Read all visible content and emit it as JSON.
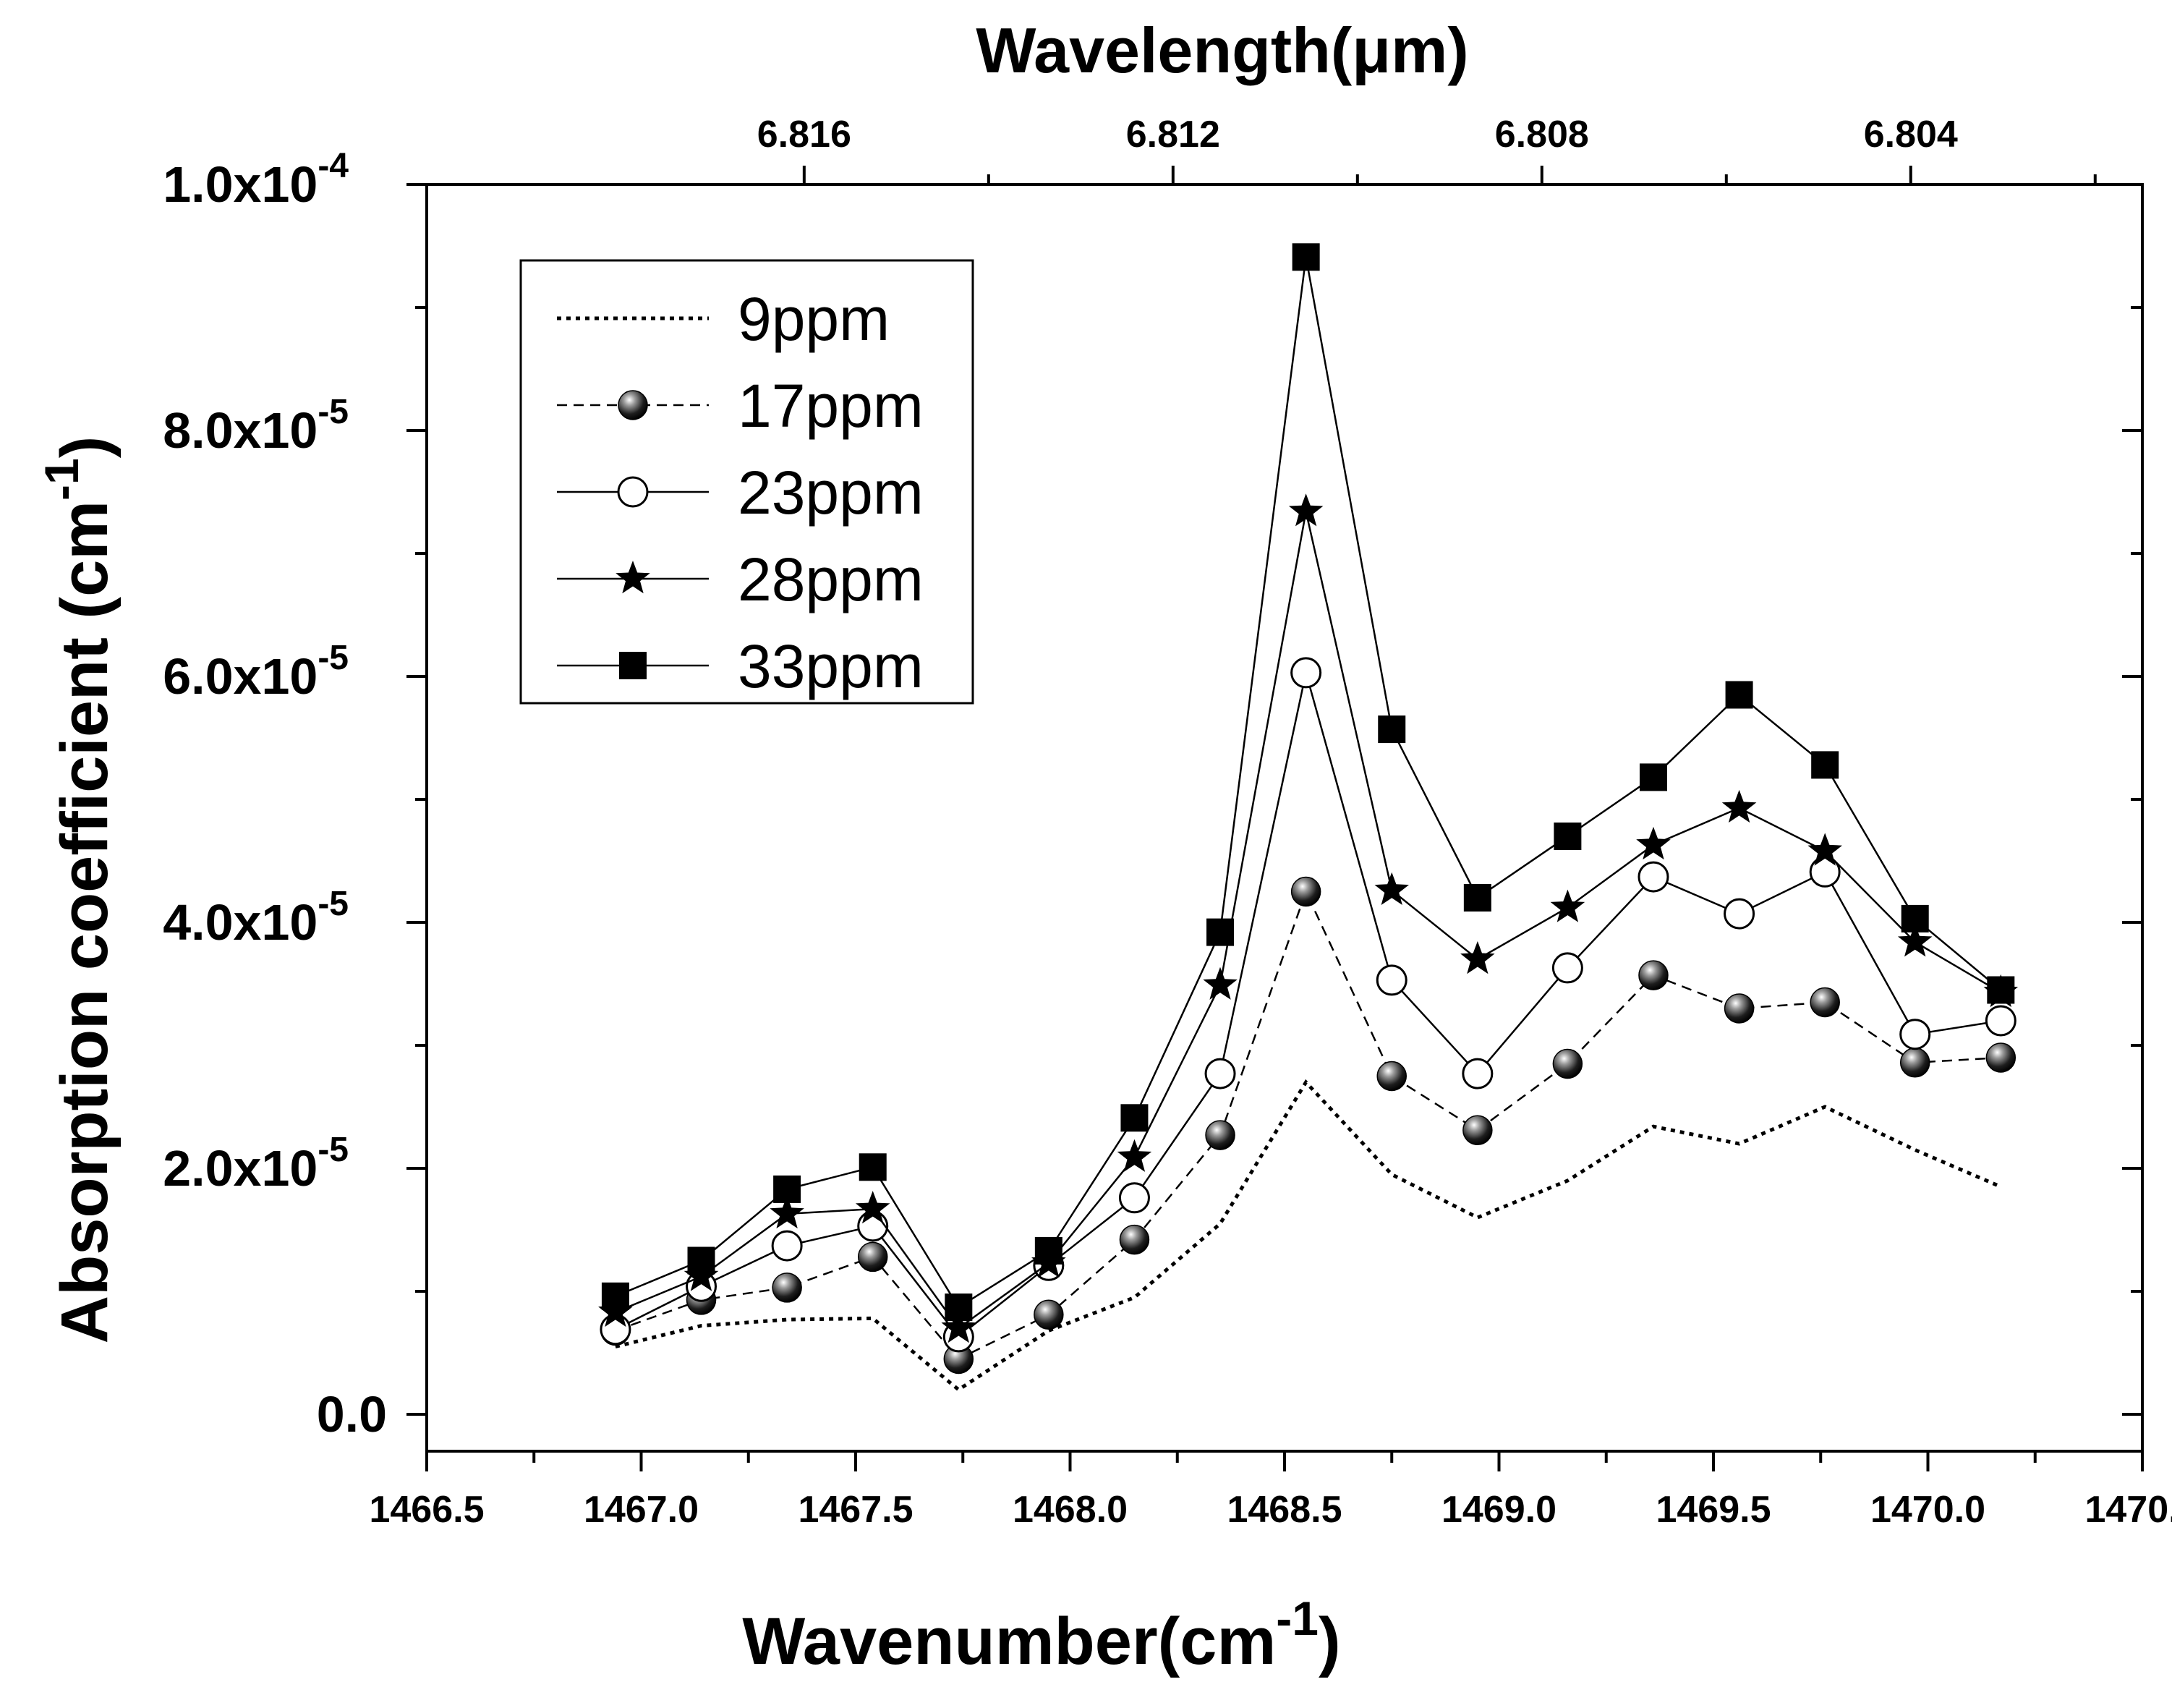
{
  "chart_data": {
    "type": "line",
    "xlabel": "Wavenumber(cm",
    "xlabel_sup": "-1",
    "xlabel_tail": ")",
    "ylabel": "Absorption coefficient (cm",
    "ylabel_sup": "-1",
    "ylabel_tail": ")",
    "top_axis_label": "Wavelength(μm)",
    "xlim": [
      1466.5,
      1470.5
    ],
    "ylim": [
      -3e-06,
      0.0001
    ],
    "grid": false,
    "legend_position": "top-left",
    "x_ticks": [
      "1466.5",
      "1467.0",
      "1467.5",
      "1468.0",
      "1468.5",
      "1469.0",
      "1469.5",
      "1470.0",
      "1470.5"
    ],
    "x_tick_values": [
      1466.5,
      1467.0,
      1467.5,
      1468.0,
      1468.5,
      1469.0,
      1469.5,
      1470.0,
      1470.5
    ],
    "y_ticks": [
      {
        "value": 0,
        "mantissa": "0.0",
        "exp": ""
      },
      {
        "value": 2e-05,
        "mantissa": "2.0x10",
        "exp": "-5"
      },
      {
        "value": 4e-05,
        "mantissa": "4.0x10",
        "exp": "-5"
      },
      {
        "value": 6e-05,
        "mantissa": "6.0x10",
        "exp": "-5"
      },
      {
        "value": 8e-05,
        "mantissa": "8.0x10",
        "exp": "-5"
      },
      {
        "value": 0.0001,
        "mantissa": "1.0x10",
        "exp": "-4"
      }
    ],
    "top_ticks": [
      {
        "label": "6.816",
        "x": 1467.38
      },
      {
        "label": "6.812",
        "x": 1468.24
      },
      {
        "label": "6.808",
        "x": 1469.1
      },
      {
        "label": "6.804",
        "x": 1469.96
      },
      {
        "label": "6.8",
        "x": 1470.82
      }
    ],
    "x": [
      1466.94,
      1467.14,
      1467.34,
      1467.54,
      1467.74,
      1467.95,
      1468.15,
      1468.35,
      1468.55,
      1468.75,
      1468.95,
      1469.16,
      1469.36,
      1469.56,
      1469.76,
      1469.97,
      1470.17
    ],
    "series": [
      {
        "name": "9ppm",
        "style": "dotted",
        "marker": "none",
        "values": [
          5.5e-06,
          7.2e-06,
          7.7e-06,
          7.8e-06,
          2e-06,
          6.8e-06,
          9.5e-06,
          1.55e-05,
          2.7e-05,
          1.95e-05,
          1.6e-05,
          1.9e-05,
          2.34e-05,
          2.2e-05,
          2.5e-05,
          2.15e-05,
          1.85e-05
        ]
      },
      {
        "name": "17ppm",
        "style": "dashed",
        "marker": "sphere",
        "values": [
          6.8e-06,
          9.3e-06,
          1.03e-05,
          1.28e-05,
          4.5e-06,
          8.1e-06,
          1.42e-05,
          2.27e-05,
          4.25e-05,
          2.75e-05,
          2.31e-05,
          2.85e-05,
          3.57e-05,
          3.3e-05,
          3.35e-05,
          2.86e-05,
          2.9e-05
        ]
      },
      {
        "name": "23ppm",
        "style": "solid",
        "marker": "open-circle",
        "values": [
          6.9e-06,
          1.04e-05,
          1.37e-05,
          1.53e-05,
          6.3e-06,
          1.21e-05,
          1.76e-05,
          2.77e-05,
          6.03e-05,
          3.53e-05,
          2.77e-05,
          3.63e-05,
          4.37e-05,
          4.07e-05,
          4.41e-05,
          3.09e-05,
          3.2e-05
        ]
      },
      {
        "name": "28ppm",
        "style": "solid",
        "marker": "star",
        "values": [
          8.3e-06,
          1.12e-05,
          1.63e-05,
          1.67e-05,
          7e-06,
          1.23e-05,
          2.09e-05,
          3.49e-05,
          7.34e-05,
          4.26e-05,
          3.7e-05,
          4.12e-05,
          4.63e-05,
          4.93e-05,
          4.58e-05,
          3.84e-05,
          3.43e-05
        ]
      },
      {
        "name": "33ppm",
        "style": "solid",
        "marker": "square",
        "values": [
          9.6e-06,
          1.25e-05,
          1.83e-05,
          2.01e-05,
          8.7e-06,
          1.33e-05,
          2.41e-05,
          3.92e-05,
          9.41e-05,
          5.57e-05,
          4.2e-05,
          4.7e-05,
          5.18e-05,
          5.85e-05,
          5.28e-05,
          4.03e-05,
          3.45e-05
        ]
      }
    ]
  }
}
